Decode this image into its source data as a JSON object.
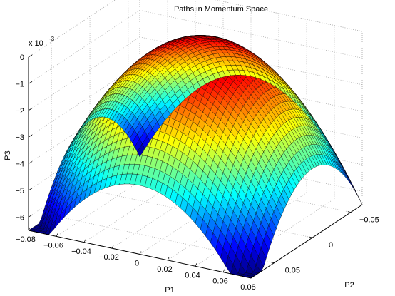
{
  "chart_data": {
    "type": "surface",
    "title": "Paths in Momentum Space",
    "xlabel": "P1",
    "ylabel": "P2",
    "zlabel": "P3",
    "z_exponent_label": "x 10",
    "z_exponent_power": "-3",
    "xlim": [
      -0.08,
      0.08
    ],
    "ylim": [
      -0.065,
      0.08
    ],
    "zlim": [
      -6.5,
      0
    ],
    "x_ticks": [
      {
        "value": -0.08,
        "label": "−0.08"
      },
      {
        "value": -0.06,
        "label": "−0.06"
      },
      {
        "value": -0.04,
        "label": "−0.04"
      },
      {
        "value": -0.02,
        "label": "−0.02"
      },
      {
        "value": 0,
        "label": "0"
      },
      {
        "value": 0.02,
        "label": "0.02"
      },
      {
        "value": 0.04,
        "label": "0.04"
      },
      {
        "value": 0.06,
        "label": "0.06"
      },
      {
        "value": 0.08,
        "label": "0.08"
      }
    ],
    "y_ticks": [
      {
        "value": -0.05,
        "label": "−0.05"
      },
      {
        "value": 0,
        "label": "0"
      },
      {
        "value": 0.05,
        "label": "0.05"
      }
    ],
    "z_ticks": [
      {
        "value": 0,
        "label": "0"
      },
      {
        "value": -1,
        "label": "−1"
      },
      {
        "value": -2,
        "label": "−2"
      },
      {
        "value": -3,
        "label": "−3"
      },
      {
        "value": -4,
        "label": "−4"
      },
      {
        "value": -5,
        "label": "−5"
      },
      {
        "value": -6,
        "label": "−6"
      }
    ],
    "surface": {
      "formula": "P3 = -K * (P1^2 + P2^2), K = 1, in units of 1e-3",
      "peak": 0,
      "colormap": "jet",
      "grid": true
    },
    "view": {
      "azimuth": -37.5,
      "elevation": 30
    }
  },
  "colors": {
    "grid": "#b0b0b0",
    "mesh": "#000000",
    "axis": "#000000"
  }
}
